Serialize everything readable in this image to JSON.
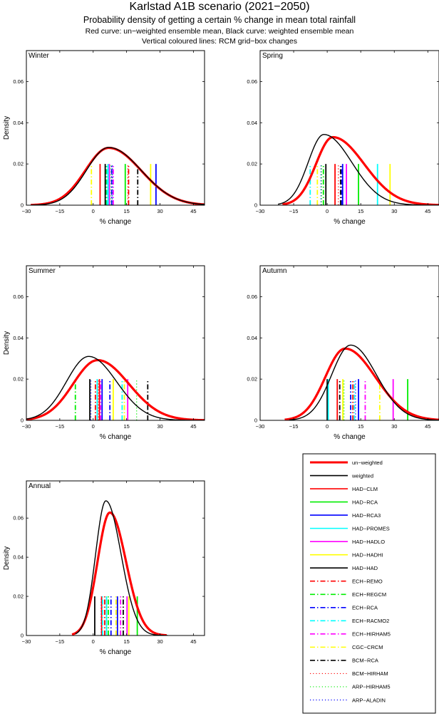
{
  "header": {
    "title": "Karlstad A1B scenario (2021−2050)",
    "subtitle": "Probability density of getting a certain % change in mean total rainfall",
    "note1": "Red curve: un−weighted ensemble mean, Black curve: weighted ensemble mean",
    "note2": "Vertical coloured lines: RCM grid−box changes"
  },
  "legend": {
    "items": [
      {
        "label": "un−weighted",
        "color": "#ff0000",
        "style": "thick"
      },
      {
        "label": "weighted",
        "color": "#000000",
        "style": "solid"
      },
      {
        "label": "HAD−CLM",
        "color": "#ff0000",
        "style": "solid"
      },
      {
        "label": "HAD−RCA",
        "color": "#00ee00",
        "style": "solid"
      },
      {
        "label": "HAD−RCA3",
        "color": "#0000ff",
        "style": "solid"
      },
      {
        "label": "HAD−PROMES",
        "color": "#00ffff",
        "style": "solid"
      },
      {
        "label": "HAD−HADLO",
        "color": "#ff00ff",
        "style": "solid"
      },
      {
        "label": "HAD−HADHI",
        "color": "#ffff00",
        "style": "solid"
      },
      {
        "label": "HAD−HAD",
        "color": "#000000",
        "style": "solid"
      },
      {
        "label": "ECH−REMO",
        "color": "#ff0000",
        "style": "dashdot"
      },
      {
        "label": "ECH−REGCM",
        "color": "#00ee00",
        "style": "dashdot"
      },
      {
        "label": "ECH−RCA",
        "color": "#0000ff",
        "style": "dashdot"
      },
      {
        "label": "ECH−RACMO2",
        "color": "#00ffff",
        "style": "dashdot"
      },
      {
        "label": "ECH−HIRHAM5",
        "color": "#ff00ff",
        "style": "dashdot"
      },
      {
        "label": "CGC−CRCM",
        "color": "#ffff00",
        "style": "dashdot"
      },
      {
        "label": "BCM−RCA",
        "color": "#000000",
        "style": "dashdot"
      },
      {
        "label": "BCM−HIRHAM",
        "color": "#ff0000",
        "style": "dotted"
      },
      {
        "label": "ARP−HIRHAM5",
        "color": "#00ee00",
        "style": "dotted"
      },
      {
        "label": "ARP−ALADIN",
        "color": "#0000ff",
        "style": "dotted"
      }
    ]
  },
  "chart_data": [
    {
      "type": "line",
      "title": "Winter",
      "xlabel": "% change",
      "ylabel": "Density",
      "xlim": [
        -30,
        50
      ],
      "ylim": [
        0,
        0.075
      ],
      "xticks": [
        -30,
        -15,
        0,
        15,
        30,
        45
      ],
      "yticks": [
        0,
        0.02,
        0.04,
        0.06
      ],
      "ytick_labels": [
        "0",
        "0.02",
        "0.04",
        "0.06"
      ],
      "grid": false,
      "curves": [
        {
          "name": "un−weighted",
          "color": "#ff0000",
          "mode": 7,
          "peak": 0.0278,
          "sigma_left": 10.5,
          "sigma_right": 14.5,
          "x_start": -28,
          "x_end": 50
        },
        {
          "name": "weighted",
          "color": "#000000",
          "mode": 7,
          "peak": 0.028,
          "sigma_left": 10,
          "sigma_right": 14.5,
          "x_start": -28,
          "x_end": 50
        }
      ],
      "rcm_line_height": 0.02,
      "rcm_lines": [
        {
          "model": "CGC−CRCM",
          "value": -0.8
        },
        {
          "model": "HAD−CLM",
          "value": 3.1
        },
        {
          "model": "BCM−RCA",
          "value": 5.6
        },
        {
          "model": "ECH−REGCM",
          "value": 5.9
        },
        {
          "model": "HAD−HAD",
          "value": 5.4
        },
        {
          "model": "HAD−PROMES",
          "value": 6.7
        },
        {
          "model": "ECH−RACMO2",
          "value": 6.3
        },
        {
          "model": "HAD−HADLO",
          "value": 7.3
        },
        {
          "model": "ARP−ALADIN",
          "value": 8.6
        },
        {
          "model": "ECH−HIRHAM5",
          "value": 9.0
        },
        {
          "model": "ECH−RCA",
          "value": 8.3
        },
        {
          "model": "HAD−RCA",
          "value": 14.4
        },
        {
          "model": "BCM−HIRHAM",
          "value": 15.6
        },
        {
          "model": "ECH−REMO",
          "value": 15.9
        },
        {
          "model": "ARP−HIRHAM5",
          "value": 8.0
        },
        {
          "model": "BCM−RCA",
          "value": 20.0
        },
        {
          "model": "HAD−HADHI",
          "value": 25.8
        },
        {
          "model": "HAD−RCA3",
          "value": 28.2
        }
      ]
    },
    {
      "type": "line",
      "title": "Spring",
      "xlabel": "% change",
      "ylabel": "",
      "xlim": [
        -30,
        50
      ],
      "ylim": [
        0,
        0.075
      ],
      "xticks": [
        -30,
        -15,
        0,
        15,
        30,
        45
      ],
      "yticks": [
        0,
        0.02,
        0.04,
        0.06
      ],
      "ytick_labels": [
        "0",
        "0.02",
        "0.04",
        "0.06"
      ],
      "grid": false,
      "curves": [
        {
          "name": "un−weighted",
          "color": "#ff0000",
          "mode": 2.5,
          "peak": 0.033,
          "sigma_left": 7.5,
          "sigma_right": 14,
          "x_start": -20,
          "x_end": 50
        },
        {
          "name": "weighted",
          "color": "#000000",
          "mode": -1.5,
          "peak": 0.0343,
          "sigma_left": 7,
          "sigma_right": 12.5,
          "x_start": -22,
          "x_end": 50
        }
      ],
      "rcm_line_height": 0.02,
      "rcm_lines": [
        {
          "model": "ECH−RACMO2",
          "value": -7.6
        },
        {
          "model": "CGC−CRCM",
          "value": -4.4
        },
        {
          "model": "ARP−ALADIN",
          "value": -2.8
        },
        {
          "model": "ARP−HIRHAM5",
          "value": -2.5
        },
        {
          "model": "ECH−REGCM",
          "value": -1.7
        },
        {
          "model": "HAD−HAD",
          "value": -0.6
        },
        {
          "model": "HAD−CLM",
          "value": 3.5
        },
        {
          "model": "BCM−HIRHAM",
          "value": 5.0
        },
        {
          "model": "BCM−RCA",
          "value": 6.0
        },
        {
          "model": "ECH−RCA",
          "value": 6.6
        },
        {
          "model": "HAD−RCA3",
          "value": 6.9
        },
        {
          "model": "HAD−HADLO",
          "value": 8.6
        },
        {
          "model": "HAD−RCA",
          "value": 14.0
        },
        {
          "model": "HAD−PROMES",
          "value": 22.5
        },
        {
          "model": "HAD−HADHI",
          "value": 28.1
        }
      ]
    },
    {
      "type": "line",
      "title": "Summer",
      "xlabel": "% change",
      "ylabel": "Density",
      "xlim": [
        -30,
        50
      ],
      "ylim": [
        0,
        0.075
      ],
      "xticks": [
        -30,
        -15,
        0,
        15,
        30,
        45
      ],
      "yticks": [
        0,
        0.02,
        0.04,
        0.06
      ],
      "ytick_labels": [
        "0",
        "0.02",
        "0.04",
        "0.06"
      ],
      "grid": false,
      "curves": [
        {
          "name": "un−weighted",
          "color": "#ff0000",
          "mode": 2,
          "peak": 0.0292,
          "sigma_left": 11,
          "sigma_right": 14,
          "x_start": -30,
          "x_end": 50
        },
        {
          "name": "weighted",
          "color": "#000000",
          "mode": -2,
          "peak": 0.031,
          "sigma_left": 10,
          "sigma_right": 12.5,
          "x_start": -30,
          "x_end": 50
        }
      ],
      "rcm_line_height": 0.02,
      "rcm_lines": [
        {
          "model": "ECH−REGCM",
          "value": -8.0
        },
        {
          "model": "HAD−HAD",
          "value": -1.5
        },
        {
          "model": "ARP−ALADIN",
          "value": -1.0
        },
        {
          "model": "ECH−REMO",
          "value": 1.0
        },
        {
          "model": "HAD−PROMES",
          "value": 1.8
        },
        {
          "model": "BCM−HIRHAM",
          "value": 2.3
        },
        {
          "model": "HAD−CLM",
          "value": 2.8
        },
        {
          "model": "ECH−HIRHAM5",
          "value": 3.3
        },
        {
          "model": "HAD−RCA3",
          "value": 4.0
        },
        {
          "model": "ECH−RCA",
          "value": 7.5
        },
        {
          "model": "HAD−HADHI",
          "value": 9.0
        },
        {
          "model": "ECH−RACMO2",
          "value": 13.0
        },
        {
          "model": "CGC−CRCM",
          "value": 14.0
        },
        {
          "model": "HAD−HADLO",
          "value": 15.5
        },
        {
          "model": "ARP−HIRHAM5",
          "value": 19.5
        },
        {
          "model": "BCM−RCA",
          "value": 24.5
        }
      ]
    },
    {
      "type": "line",
      "title": "Autumn",
      "xlabel": "% change",
      "ylabel": "",
      "xlim": [
        -30,
        50
      ],
      "ylim": [
        0,
        0.075
      ],
      "xticks": [
        -30,
        -15,
        0,
        15,
        30,
        45
      ],
      "yticks": [
        0,
        0.02,
        0.04,
        0.06
      ],
      "ytick_labels": [
        "0",
        "0.02",
        "0.04",
        "0.06"
      ],
      "grid": false,
      "curves": [
        {
          "name": "un−weighted",
          "color": "#ff0000",
          "mode": 8,
          "peak": 0.0348,
          "sigma_left": 8.8,
          "sigma_right": 13.5,
          "x_start": -19,
          "x_end": 50
        },
        {
          "name": "weighted",
          "color": "#000000",
          "mode": 10.5,
          "peak": 0.0365,
          "sigma_left": 8.5,
          "sigma_right": 11.5,
          "x_start": -17,
          "x_end": 50
        }
      ],
      "rcm_line_height": 0.02,
      "rcm_lines": [
        {
          "model": "HAD−HAD",
          "value": 0.0
        },
        {
          "model": "HAD−PROMES",
          "value": 0.5
        },
        {
          "model": "HAD−CLM",
          "value": 4.5
        },
        {
          "model": "BCM−RCA",
          "value": 5.6
        },
        {
          "model": "HAD−HADHI",
          "value": 7.0
        },
        {
          "model": "ARP−HIRHAM5",
          "value": 7.5
        },
        {
          "model": "ECH−RCA",
          "value": 10.5
        },
        {
          "model": "ECH−REMO",
          "value": 11.5
        },
        {
          "model": "ECH−RACMO2",
          "value": 12.2
        },
        {
          "model": "ARP−ALADIN",
          "value": 12.7
        },
        {
          "model": "HAD−RCA3",
          "value": 14.0
        },
        {
          "model": "ECH−HIRHAM5",
          "value": 17.0
        },
        {
          "model": "CGC−CRCM",
          "value": 23.5
        },
        {
          "model": "HAD−HADLO",
          "value": 29.5
        },
        {
          "model": "HAD−RCA",
          "value": 36.0
        }
      ]
    },
    {
      "type": "line",
      "title": "Annual",
      "xlabel": "% change",
      "ylabel": "Density",
      "xlim": [
        -30,
        50
      ],
      "ylim": [
        0,
        0.079
      ],
      "xticks": [
        -30,
        -15,
        0,
        15,
        30,
        45
      ],
      "yticks": [
        0,
        0.02,
        0.04,
        0.06
      ],
      "ytick_labels": [
        "0",
        "0.02",
        "0.04",
        "0.06"
      ],
      "grid": false,
      "curves": [
        {
          "name": "un−weighted",
          "color": "#ff0000",
          "mode": 7.5,
          "peak": 0.0628,
          "sigma_left": 5.5,
          "sigma_right": 7.2,
          "x_start": -9.5,
          "x_end": 33
        },
        {
          "name": "weighted",
          "color": "#000000",
          "mode": 5.7,
          "peak": 0.0688,
          "sigma_left": 4.6,
          "sigma_right": 6.8,
          "x_start": -8,
          "x_end": 33.5
        }
      ],
      "rcm_line_height": 0.02,
      "rcm_lines": [
        {
          "model": "HAD−HAD",
          "value": 0.7
        },
        {
          "model": "ARP−ALADIN",
          "value": 3.6
        },
        {
          "model": "HAD−CLM",
          "value": 3.8
        },
        {
          "model": "ECH−RACMO2",
          "value": 4.2
        },
        {
          "model": "ECH−REMO",
          "value": 5.2
        },
        {
          "model": "HAD−PROMES",
          "value": 6.0
        },
        {
          "model": "ECH−REGCM",
          "value": 6.8
        },
        {
          "model": "ECH−RCA",
          "value": 8.0
        },
        {
          "model": "CGC−CRCM",
          "value": 10.3
        },
        {
          "model": "HAD−RCA3",
          "value": 10.9
        },
        {
          "model": "ECH−HIRHAM5",
          "value": 12.3
        },
        {
          "model": "BCM−RCA",
          "value": 13.5
        },
        {
          "model": "HAD−HADLO",
          "value": 15.2
        },
        {
          "model": "HAD−HADHI",
          "value": 16.0
        },
        {
          "model": "HAD−RCA",
          "value": 19.8
        }
      ]
    }
  ]
}
